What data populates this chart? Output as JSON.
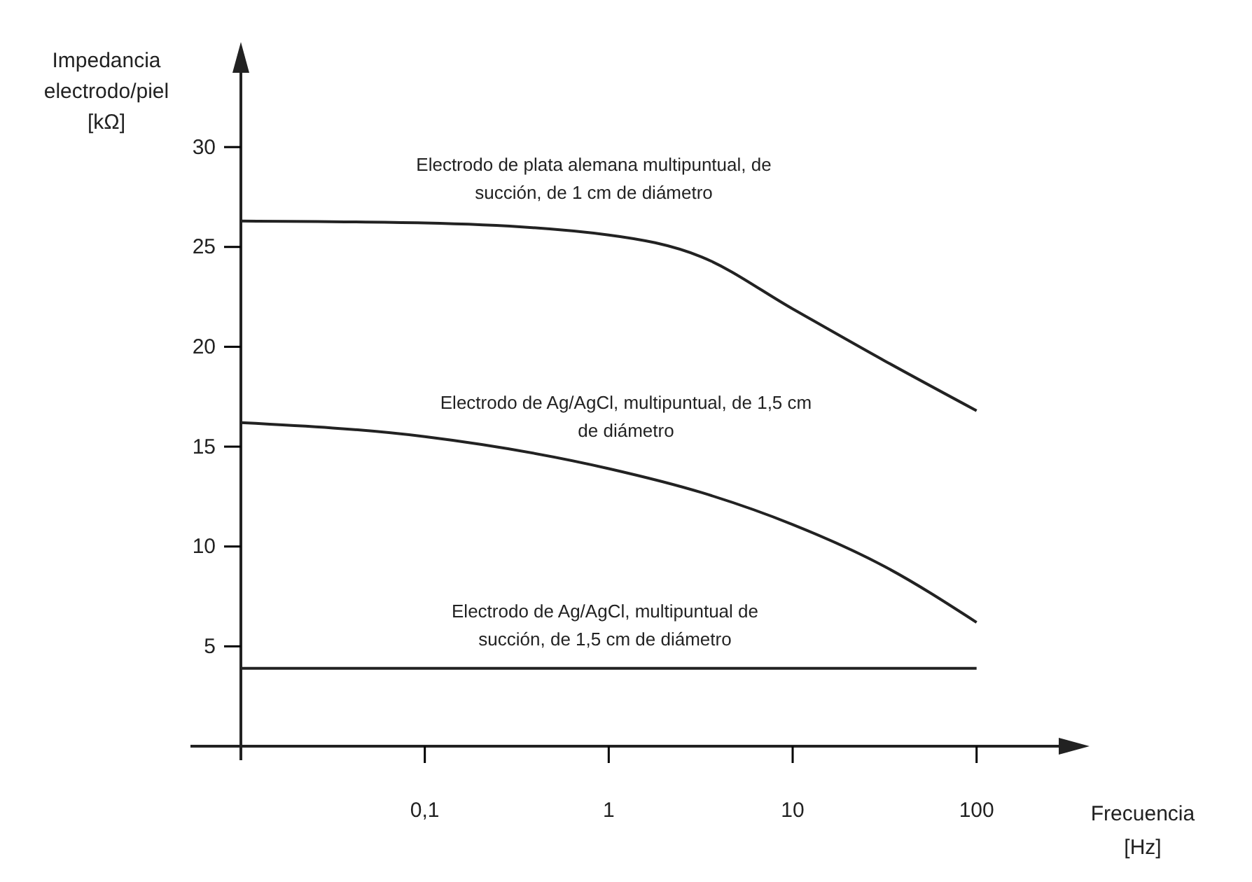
{
  "chart_data": {
    "type": "line",
    "xlabel": "Frecuencia\n[Hz]",
    "ylabel": "Impedancia\nelectrodo/piel\n[kΩ]",
    "log": "x",
    "xlim": [
      0.01,
      300
    ],
    "ylim": [
      0,
      34
    ],
    "xticks": [
      {
        "value": 0.1,
        "label": "0,1"
      },
      1,
      10,
      100
    ],
    "yticks": [
      5,
      10,
      15,
      20,
      25,
      30
    ],
    "grid": false,
    "marker": "none",
    "line_style": "solid",
    "series": [
      {
        "color": "#222222",
        "x": [
          0.01,
          0.1,
          1,
          3.2,
          10,
          31.6,
          100
        ],
        "values": [
          26.3,
          26.2,
          25.6,
          24.5,
          21.9,
          19.3,
          16.8
        ]
      },
      {
        "color": "#222222",
        "x": [
          0.01,
          0.1,
          1,
          3.2,
          10,
          31.6,
          100
        ],
        "values": [
          16.2,
          15.5,
          13.9,
          12.7,
          11.1,
          9.0,
          6.2
        ]
      },
      {
        "color": "#222222",
        "x": [
          0.01,
          1,
          100
        ],
        "values": [
          3.9,
          3.9,
          3.9
        ]
      }
    ],
    "annotations": [
      "Electrodo de plata alemana multipuntual, de\nsucción, de 1 cm de diámetro",
      "Electrodo de Ag/AgCl, multipuntual, de 1,5 cm\nde diámetro",
      "Electrodo de Ag/AgCl, multipuntual de\nsucción, de 1,5 cm de diámetro"
    ]
  }
}
